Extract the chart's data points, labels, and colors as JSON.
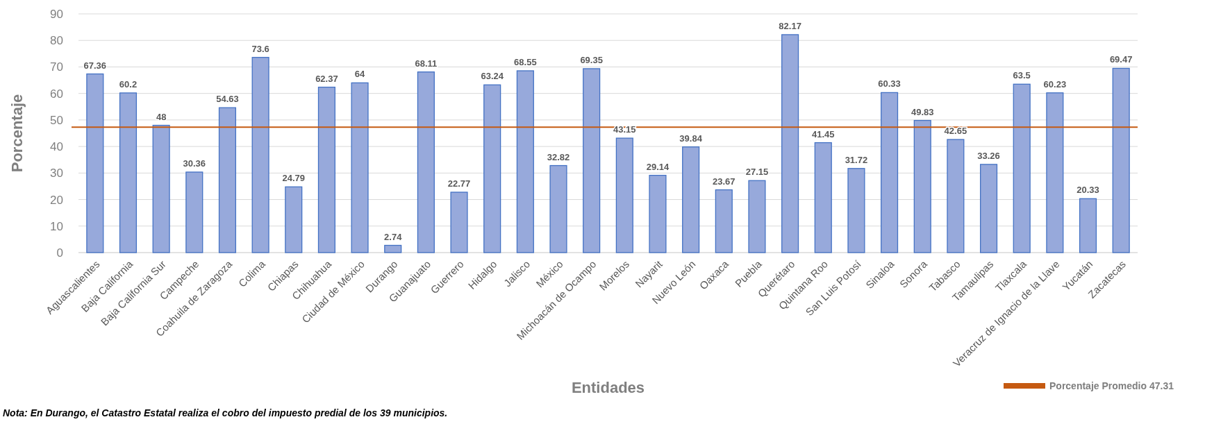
{
  "chart_data": {
    "type": "bar",
    "xlabel": "Entidades",
    "ylabel": "Porcentaje",
    "categories": [
      "Aguascalientes",
      "Baja California",
      "Baja California Sur",
      "Campeche",
      "Coahuila de Zaragoza",
      "Colima",
      "Chiapas",
      "Chihuahua",
      "Ciudad de México",
      "Durango",
      "Guanajuato",
      "Guerrero",
      "Hidalgo",
      "Jalisco",
      "México",
      "Michoacán de Ocampo",
      "Morelos",
      "Nayarit",
      "Nuevo León",
      "Oaxaca",
      "Puebla",
      "Querétaro",
      "Quintana Roo",
      "San Luis Potosí",
      "Sinaloa",
      "Sonora",
      "Tabasco",
      "Tamaulipas",
      "Tlaxcala",
      "Veracruz de Ignacio de la Llave",
      "Yucatán",
      "Zacatecas"
    ],
    "values": [
      67.36,
      60.2,
      48,
      30.36,
      54.63,
      73.6,
      24.79,
      62.37,
      64,
      2.74,
      68.11,
      22.77,
      63.24,
      68.55,
      32.82,
      69.35,
      43.15,
      29.14,
      39.84,
      23.67,
      27.15,
      82.17,
      41.45,
      31.72,
      60.33,
      49.83,
      42.65,
      33.26,
      63.5,
      60.23,
      20.33,
      69.47
    ],
    "color": "#97a9db",
    "data_labels": true,
    "ylim": [
      0,
      90
    ],
    "yticks": [
      0,
      10,
      20,
      30,
      40,
      50,
      60,
      70,
      80,
      90
    ],
    "grid": "y",
    "ref_lines": [
      {
        "axis": "y",
        "value": 47.31,
        "label": "Porcentaje Promedio 47.31",
        "color": "#c55a11"
      }
    ],
    "legend": "bottom right",
    "annotations": [
      "Nota: En Durango, el Catastro Estatal realiza el cobro del impuesto predial de los 39 municipios."
    ]
  }
}
